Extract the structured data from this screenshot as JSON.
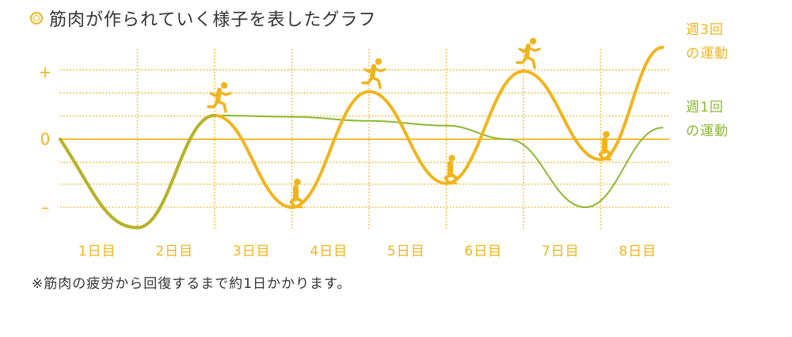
{
  "title": "筋肉が作られていく様子を表したグラフ",
  "footnote": "※筋肉の疲労から回復するまで約1日かかります。",
  "colors": {
    "orange": "#f0b41d",
    "green": "#8bb832",
    "axis_text": "#f0b41d",
    "text": "#333333"
  },
  "chart_data": {
    "type": "line",
    "title": "筋肉が作られていく様子を表したグラフ",
    "y_tick_labels": [
      "+",
      "0",
      "–"
    ],
    "x_categories": [
      "1日目",
      "2日目",
      "3日目",
      "4日目",
      "5日目",
      "6日目",
      "7日目",
      "8日目"
    ],
    "grid": true,
    "legend_position": "right",
    "series": [
      {
        "name": "週3回\nの運動",
        "label_lines": [
          "週3回",
          "の運動"
        ],
        "color": "#f0b41d",
        "x": [
          0,
          1,
          2,
          3,
          4,
          5,
          6,
          7,
          7.8
        ],
        "y": [
          0,
          -1.3,
          0.35,
          -1.0,
          0.7,
          -0.65,
          1.0,
          -0.3,
          1.35
        ],
        "runner_markers": [
          {
            "x": 2,
            "pose": "running"
          },
          {
            "x": 3,
            "pose": "resting"
          },
          {
            "x": 4,
            "pose": "running"
          },
          {
            "x": 5,
            "pose": "resting"
          },
          {
            "x": 6,
            "pose": "running"
          },
          {
            "x": 7,
            "pose": "resting"
          }
        ]
      },
      {
        "name": "週1回\nの運動",
        "label_lines": [
          "週1回",
          "の運動"
        ],
        "color": "#8bb832",
        "x": [
          0,
          1,
          2,
          3,
          4,
          5,
          5.8,
          6.8,
          7.8
        ],
        "y": [
          0,
          -1.3,
          0.35,
          0.33,
          0.27,
          0.2,
          0.0,
          -1.0,
          0.17
        ]
      }
    ]
  }
}
